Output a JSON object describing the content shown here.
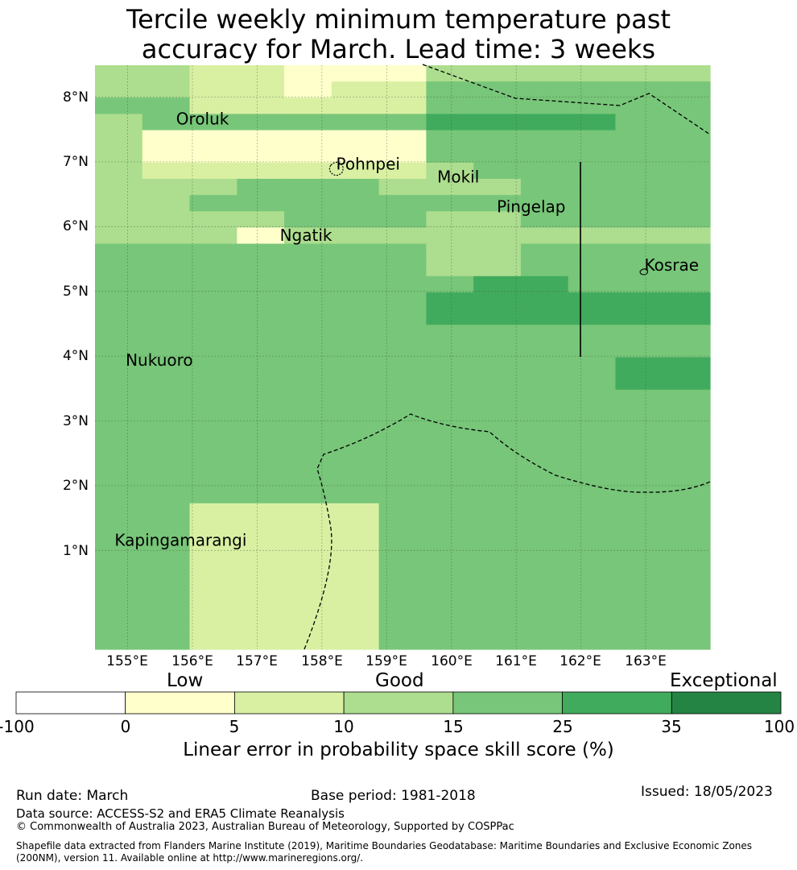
{
  "title_lines": [
    "Tercile weekly minimum temperature past",
    "accuracy for March. Lead time: 3 weeks"
  ],
  "map": {
    "lat_labels": [
      "8°N",
      "7°N",
      "6°N",
      "5°N",
      "4°N",
      "3°N",
      "2°N",
      "1°N"
    ],
    "lon_labels": [
      "155°E",
      "156°E",
      "157°E",
      "158°E",
      "159°E",
      "160°E",
      "161°E",
      "162°E",
      "163°E"
    ],
    "places": [
      {
        "name": "Oroluk",
        "lon": 155.75,
        "lat": 7.58
      },
      {
        "name": "Pohnpei",
        "lon": 158.22,
        "lat": 6.88
      },
      {
        "name": "Mokil",
        "lon": 159.78,
        "lat": 6.68
      },
      {
        "name": "Pingelap",
        "lon": 160.7,
        "lat": 6.22
      },
      {
        "name": "Ngatik",
        "lon": 157.35,
        "lat": 5.78
      },
      {
        "name": "Kosrae",
        "lon": 162.98,
        "lat": 5.32
      },
      {
        "name": "Nukuoro",
        "lon": 154.97,
        "lat": 3.85
      },
      {
        "name": "Kapingamarangi",
        "lon": 154.8,
        "lat": 1.07
      }
    ],
    "legend_colors": [
      "#ffffff",
      "#ffffcc",
      "#d9f0a3",
      "#addd8e",
      "#78c679",
      "#41ab5d",
      "#238443"
    ],
    "grid_rows_north_to_south": [
      "3322111333333",
      "3322122444444",
      "4422222444444",
      "3444444555544",
      "3111111444444",
      "3111111444444",
      "3222222344444",
      "3334443334444",
      "3344444444444",
      "3333444334444",
      "3331333333333",
      "4444444334444",
      "4444444334444",
      "4444444455444",
      "4444444555555",
      "4444444555555",
      "4444444444444",
      "4444444444444",
      "4444444444455",
      "4444444444455",
      "4444444444444",
      "4444444444444",
      "4444444444444",
      "4444444444444",
      "4444444444444",
      "4444444444444",
      "4444444444444",
      "4422224444444",
      "4422224444444",
      "4422224444444",
      "4422224444444",
      "4422224444444",
      "4422224444444",
      "4422224444444",
      "4422224444444",
      "4422224444444"
    ]
  },
  "colorbar": {
    "categories": [
      "Low",
      "Good",
      "Exceptional"
    ],
    "ticks": [
      "-100",
      "0",
      "5",
      "10",
      "15",
      "25",
      "35",
      "100"
    ],
    "colors": [
      "#ffffff",
      "#ffffcc",
      "#d9f0a3",
      "#addd8e",
      "#78c679",
      "#41ab5d",
      "#238443"
    ],
    "label": "Linear error in probability space skill score (%)"
  },
  "footer": {
    "run_date": "Run date: March",
    "base_period": "Base period: 1981-2018",
    "issued": "Issued: 18/05/2023",
    "data_source": "Data source: ACCESS-S2 and ERA5 Climate Reanalysis",
    "copyright": "© Commonwealth of Australia 2023, Australian Bureau of Meteorology, Supported by COSPPac",
    "shapefile_note": "Shapefile data extracted from Flanders Marine Institute (2019), Maritime Boundaries Geodatabase: Maritime Boundaries and Exclusive Economic Zones (200NM), version 11. Available online at http://www.marineregions.org/."
  }
}
